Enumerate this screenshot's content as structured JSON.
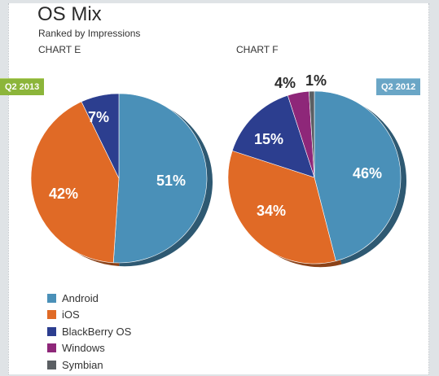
{
  "title": "OS Mix",
  "subtitle": "Ranked by Impressions",
  "chart_data": [
    {
      "type": "pie",
      "label": "CHART E",
      "period": "Q2 2013",
      "categories": [
        "Android",
        "iOS",
        "BlackBerry OS"
      ],
      "values": [
        51,
        42,
        7
      ],
      "data_labels": [
        "51%",
        "42%",
        "7%"
      ],
      "colors": [
        "#4a90b8",
        "#e06a26",
        "#2c3e8f"
      ]
    },
    {
      "type": "pie",
      "label": "CHART F",
      "period": "Q2 2012",
      "categories": [
        "Android",
        "iOS",
        "BlackBerry OS",
        "Windows",
        "Symbian"
      ],
      "values": [
        46,
        34,
        15,
        4,
        1
      ],
      "data_labels": [
        "46%",
        "34%",
        "15%",
        "4%",
        "1%"
      ],
      "colors": [
        "#4a90b8",
        "#e06a26",
        "#2c3e8f",
        "#8e2779",
        "#5b5f63"
      ]
    }
  ],
  "legend": {
    "placement": "bottom-left",
    "items": [
      {
        "label": "Android",
        "color": "#4a90b8"
      },
      {
        "label": "iOS",
        "color": "#e06a26"
      },
      {
        "label": "BlackBerry OS",
        "color": "#2c3e8f"
      },
      {
        "label": "Windows",
        "color": "#8e2779"
      },
      {
        "label": "Symbian",
        "color": "#5b5f63"
      }
    ]
  }
}
